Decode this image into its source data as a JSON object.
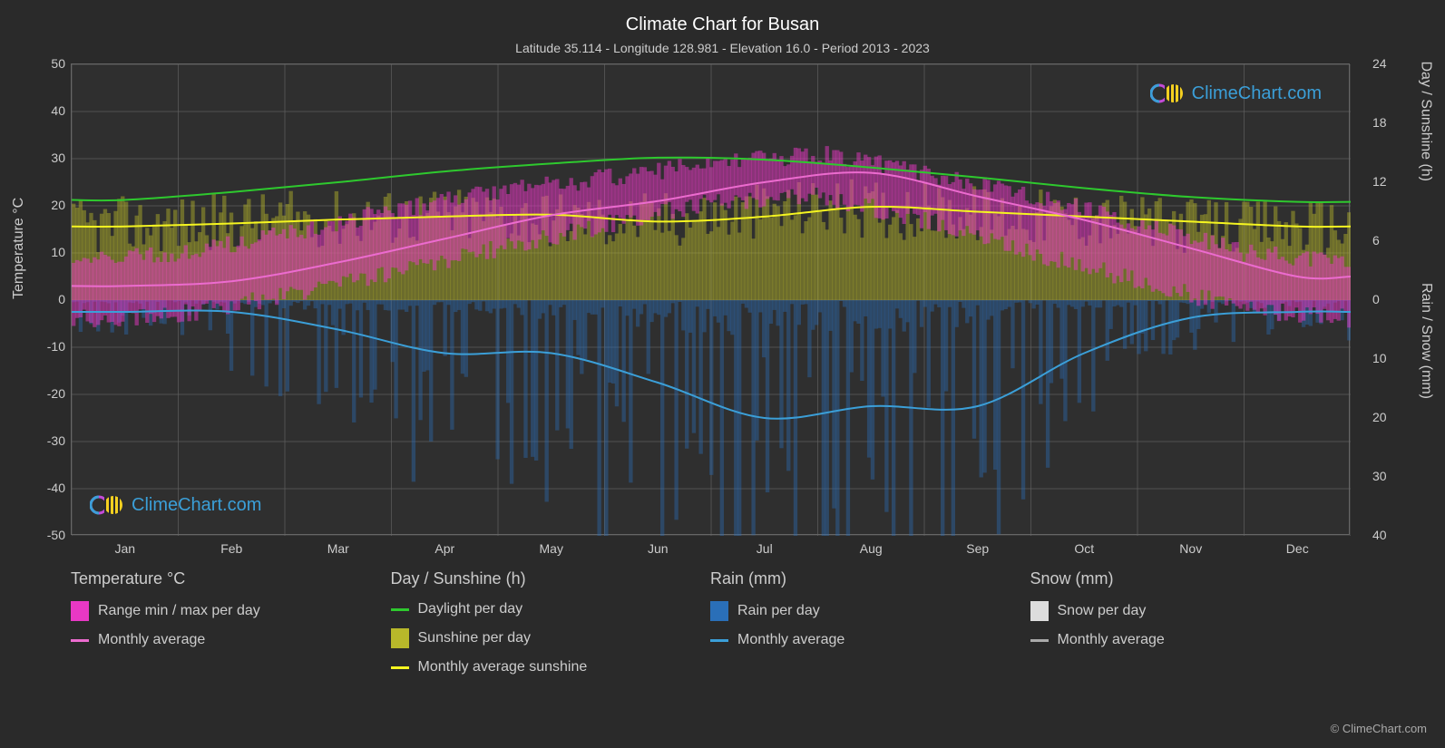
{
  "title": "Climate Chart for Busan",
  "subtitle": "Latitude 35.114 - Longitude 128.981 - Elevation 16.0 - Period 2013 - 2023",
  "watermark_text": "ClimeChart.com",
  "copyright": "© ClimeChart.com",
  "chart": {
    "background_color": "#2a2a2a",
    "plot_background": "#2f2f2f",
    "grid_color": "#666666",
    "text_color": "#cccccc",
    "title_color": "#ffffff",
    "title_fontsize": 20,
    "subtitle_fontsize": 14,
    "label_fontsize": 16,
    "tick_fontsize": 14,
    "months": [
      "Jan",
      "Feb",
      "Mar",
      "Apr",
      "May",
      "Jun",
      "Jul",
      "Aug",
      "Sep",
      "Oct",
      "Nov",
      "Dec"
    ],
    "y_left": {
      "label": "Temperature °C",
      "min": -50,
      "max": 50,
      "ticks": [
        50,
        40,
        30,
        20,
        10,
        0,
        -10,
        -20,
        -30,
        -40,
        -50
      ]
    },
    "y_right_top": {
      "label": "Day / Sunshine (h)",
      "min": 0,
      "max": 24,
      "ticks": [
        24,
        18,
        12,
        6,
        0
      ]
    },
    "y_right_bottom": {
      "label": "Rain / Snow (mm)",
      "min": 0,
      "max": 40,
      "ticks": [
        0,
        10,
        20,
        30,
        40
      ]
    },
    "series": {
      "temp_range_color": "#e838c4",
      "temp_range_opacity": 0.5,
      "temp_avg_color": "#ec6bcf",
      "daylight_color": "#2ec92e",
      "sunshine_bar_color": "#b8b82a",
      "sunshine_bar_opacity": 0.45,
      "sunshine_avg_color": "#f5f520",
      "rain_bar_color": "#2a6fb8",
      "rain_bar_opacity": 0.4,
      "rain_avg_color": "#3b9fd8",
      "snow_bar_color": "#dddddd",
      "snow_avg_color": "#aaaaaa",
      "line_width": 2
    },
    "data": {
      "temp_min": [
        -4,
        -3,
        1,
        6,
        11,
        16,
        21,
        22,
        17,
        10,
        4,
        -2
      ],
      "temp_max": [
        8,
        10,
        14,
        19,
        23,
        26,
        29,
        31,
        27,
        22,
        16,
        10
      ],
      "temp_avg": [
        3,
        4,
        8,
        13,
        18,
        21,
        25,
        27,
        22,
        17,
        11,
        5
      ],
      "daylight": [
        10.2,
        11.0,
        12.0,
        13.1,
        13.9,
        14.5,
        14.3,
        13.5,
        12.5,
        11.4,
        10.5,
        10.0
      ],
      "sunshine_avg": [
        7.5,
        7.8,
        8.2,
        8.5,
        8.7,
        8.0,
        8.5,
        9.5,
        9.0,
        8.5,
        8.0,
        7.5
      ],
      "rain_avg": [
        2,
        2,
        5,
        9,
        9,
        14,
        20,
        18,
        18,
        9,
        3,
        2
      ]
    }
  },
  "legend": {
    "columns": [
      {
        "title": "Temperature °C",
        "items": [
          {
            "type": "box",
            "color": "#e838c4",
            "label": "Range min / max per day"
          },
          {
            "type": "line",
            "color": "#ec6bcf",
            "label": "Monthly average"
          }
        ]
      },
      {
        "title": "Day / Sunshine (h)",
        "items": [
          {
            "type": "line",
            "color": "#2ec92e",
            "label": "Daylight per day"
          },
          {
            "type": "box",
            "color": "#b8b82a",
            "label": "Sunshine per day"
          },
          {
            "type": "line",
            "color": "#f5f520",
            "label": "Monthly average sunshine"
          }
        ]
      },
      {
        "title": "Rain (mm)",
        "items": [
          {
            "type": "box",
            "color": "#2a6fb8",
            "label": "Rain per day"
          },
          {
            "type": "line",
            "color": "#3b9fd8",
            "label": "Monthly average"
          }
        ]
      },
      {
        "title": "Snow (mm)",
        "items": [
          {
            "type": "box",
            "color": "#dddddd",
            "label": "Snow per day"
          },
          {
            "type": "line",
            "color": "#aaaaaa",
            "label": "Monthly average"
          }
        ]
      }
    ]
  }
}
